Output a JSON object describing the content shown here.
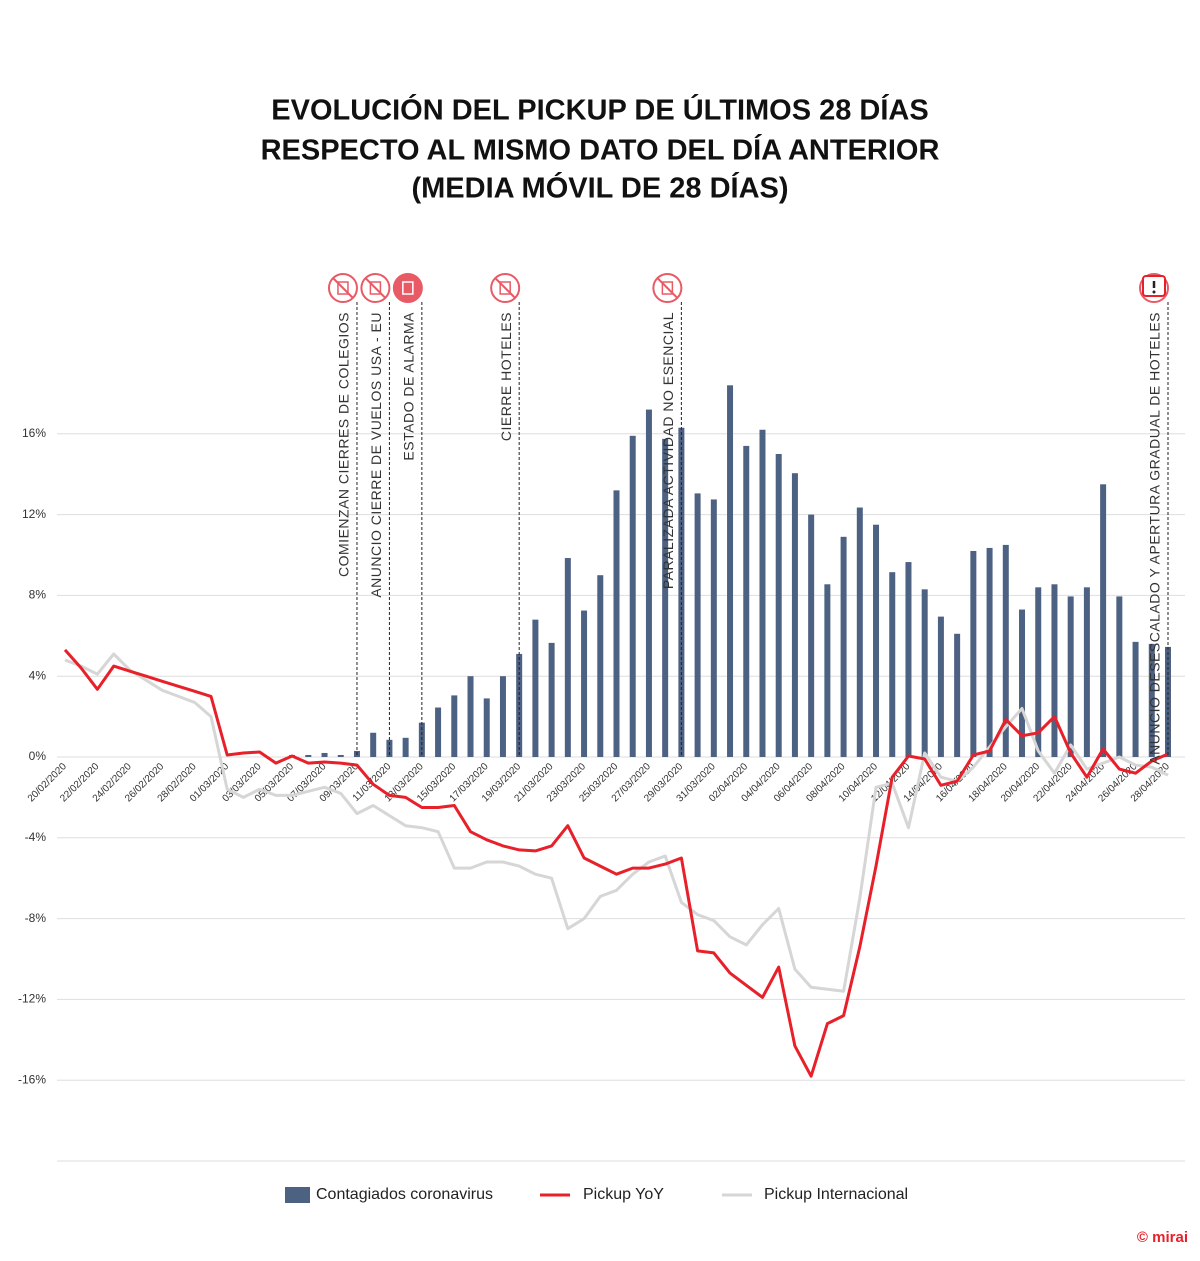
{
  "chart_data": {
    "type": "bar_line",
    "title": [
      "EVOLUCIÓN DEL PICKUP DE ÚLTIMOS 28 DÍAS",
      "RESPECTO AL MISMO DATO DEL DÍA ANTERIOR",
      "(MEDIA MÓVIL DE 28 DÍAS)"
    ],
    "categories": [
      "20/02/2020",
      null,
      "22/02/2020",
      null,
      "24/02/2020",
      null,
      "26/02/2020",
      null,
      "28/02/2020",
      null,
      "01/03/2020",
      null,
      "03/03/2020",
      null,
      "05/03/2020",
      null,
      "07/03/2020",
      null,
      "09/03/2020",
      null,
      "11/03/2020",
      null,
      "13/03/2020",
      null,
      "15/03/2020",
      null,
      "17/03/2020",
      null,
      "19/03/2020",
      null,
      "21/03/2020",
      null,
      "23/03/2020",
      null,
      "25/03/2020",
      null,
      "27/03/2020",
      null,
      "29/03/2020",
      null,
      "31/03/2020",
      null,
      "02/04/2020",
      null,
      "04/04/2020",
      null,
      "06/04/2020",
      null,
      "08/04/2020",
      null,
      "10/04/2020",
      null,
      "12/04/2020",
      null,
      "14/04/2020",
      null,
      "16/04/2020",
      null,
      "18/04/2020",
      null,
      "20/04/2020",
      null,
      "22/04/2020",
      null,
      "24/04/2020",
      null,
      "26/04/2020",
      null,
      "28/04/2020"
    ],
    "series": [
      {
        "name": "Contagiados coronavirus",
        "kind": "bar",
        "color": "#4d6283",
        "values": [
          0,
          0,
          0,
          0,
          0,
          0,
          0,
          0,
          0,
          0,
          0,
          0,
          0,
          0,
          0.1,
          0.1,
          0.2,
          0.1,
          0.3,
          1.2,
          0.85,
          0.95,
          1.7,
          2.45,
          3.05,
          4.0,
          2.9,
          4.0,
          5.1,
          6.8,
          5.65,
          9.85,
          7.25,
          9.0,
          13.2,
          15.9,
          17.2,
          15.75,
          16.3,
          13.05,
          12.75,
          18.4,
          15.4,
          16.2,
          15.0,
          14.05,
          12.0,
          8.55,
          10.9,
          12.35,
          11.5,
          9.15,
          9.65,
          8.3,
          6.95,
          6.1,
          10.2,
          10.35,
          10.5,
          7.3,
          8.4,
          8.55,
          7.95,
          8.4,
          13.5,
          7.95,
          5.7,
          5.6,
          5.45
        ]
      },
      {
        "name": "Pickup YoY",
        "kind": "line",
        "color": "#e8202a",
        "values": [
          5.3,
          4.4,
          3.35,
          4.5,
          4.25,
          4.0,
          3.75,
          3.5,
          3.25,
          3.0,
          0.1,
          0.2,
          0.25,
          -0.3,
          0.05,
          -0.3,
          -0.25,
          -0.3,
          -0.4,
          -1.35,
          -1.9,
          -2.0,
          -2.5,
          -2.5,
          -2.4,
          -3.7,
          -4.1,
          -4.4,
          -4.6,
          -4.65,
          -4.4,
          -3.4,
          -5.0,
          -5.4,
          -5.8,
          -5.5,
          -5.5,
          -5.3,
          -5.0,
          -9.6,
          -9.7,
          -10.7,
          -11.3,
          -11.9,
          -10.4,
          -14.3,
          -15.8,
          -13.2,
          -12.8,
          -9.4,
          -5.4,
          -1.0,
          0.05,
          -0.1,
          -1.4,
          -1.2,
          0.1,
          0.3,
          1.85,
          1.05,
          1.2,
          2.0,
          0.2,
          -1.0,
          0.4,
          -0.6,
          -0.8,
          -0.2,
          0.15
        ]
      },
      {
        "name": "Pickup Internacional",
        "kind": "line",
        "color": "#d6d6d6",
        "values": [
          4.8,
          4.5,
          4.1,
          5.1,
          4.3,
          3.8,
          3.3,
          3.0,
          2.7,
          2.0,
          -1.6,
          -2.0,
          -1.6,
          -1.9,
          -1.9,
          -1.7,
          -1.5,
          -1.8,
          -2.8,
          -2.4,
          -2.9,
          -3.4,
          -3.5,
          -3.7,
          -5.5,
          -5.5,
          -5.2,
          -5.2,
          -5.4,
          -5.8,
          -6.0,
          -8.5,
          -8.0,
          -6.9,
          -6.6,
          -5.8,
          -5.2,
          -4.9,
          -7.2,
          -7.8,
          -8.1,
          -8.9,
          -9.3,
          -8.3,
          -7.5,
          -10.5,
          -11.4,
          -11.5,
          -11.6,
          -7.0,
          -1.5,
          -1.3,
          -3.5,
          0.2,
          -1.0,
          -1.2,
          -0.5,
          0.5,
          1.5,
          2.4,
          0.3,
          -0.8,
          0.6,
          -0.6,
          -0.3,
          0.0,
          -0.4,
          -0.5,
          -0.9
        ]
      }
    ],
    "ylim": [
      -20,
      20
    ],
    "yticks": [
      {
        "value": -16,
        "label": "-16%"
      },
      {
        "value": -12,
        "label": "-12%"
      },
      {
        "value": -8,
        "label": "-8%"
      },
      {
        "value": -4,
        "label": "-4%"
      },
      {
        "value": 0,
        "label": "0%"
      },
      {
        "value": 4,
        "label": "4%"
      },
      {
        "value": 8,
        "label": "8%"
      },
      {
        "value": 12,
        "label": "12%"
      },
      {
        "value": 16,
        "label": "16%"
      }
    ],
    "grid": true,
    "annotations": [
      {
        "text": "COMIENZAN CIERRES DE COLEGIOS",
        "date": "09/03/2020"
      },
      {
        "text": "ANUNCIO CIERRE DE VUELOS USA - EU",
        "date": "11/03/2020"
      },
      {
        "text": "ESTADO DE ALARMA",
        "date": "13/03/2020"
      },
      {
        "text": "CIERRE HOTELES",
        "date": "19/03/2020"
      },
      {
        "text": "PARALIZADA ACTIVIDAD NO ESENCIAL",
        "date": "29/03/2020"
      },
      {
        "text": "ANUNCIO DESESCALADO Y APERTURA GRADUAL DE HOTELES",
        "date": "28/04/2020"
      }
    ],
    "credit": "© mirai"
  }
}
